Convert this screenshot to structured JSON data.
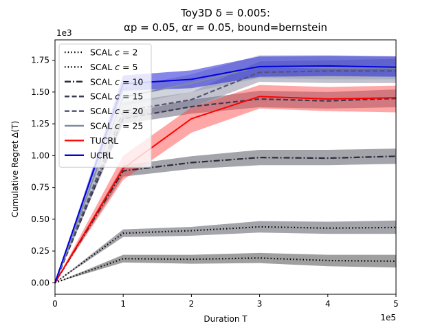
{
  "chart_data": {
    "type": "line",
    "title_line1": "Toy3D δ = 0.005:",
    "title_line2": "αp = 0.05, αr = 0.05, bound=bernstein",
    "xlabel": "Duration T",
    "ylabel": "Cumulative Regret Δ(T)",
    "x_offset_label": "1e5",
    "y_offset_label": "1e3",
    "xlim": [
      0,
      5
    ],
    "ylim": [
      -0.09,
      1.91
    ],
    "x_ticks": [
      0,
      1,
      2,
      3,
      4,
      5
    ],
    "x_tick_labels": [
      "0",
      "1",
      "2",
      "3",
      "4",
      "5"
    ],
    "y_ticks": [
      0,
      0.25,
      0.5,
      0.75,
      1.0,
      1.25,
      1.5,
      1.75
    ],
    "y_tick_labels": [
      "0.00",
      "0.25",
      "0.50",
      "0.75",
      "1.00",
      "1.25",
      "1.50",
      "1.75"
    ],
    "x": [
      0,
      1,
      2,
      3,
      4,
      5
    ],
    "legend_position": "top-left",
    "series": [
      {
        "name": "SCAL c=2",
        "label_prefix": "SCAL ",
        "label_math": "c = 2",
        "color": "#000000",
        "dash": "dotted",
        "line_width": 2.2,
        "values": [
          0,
          0.19,
          0.185,
          0.195,
          0.175,
          0.17
        ],
        "lower": [
          0,
          0.16,
          0.15,
          0.155,
          0.13,
          0.12
        ],
        "upper": [
          0,
          0.22,
          0.22,
          0.235,
          0.22,
          0.22
        ],
        "band_color": "#404040",
        "band_opacity": 0.5
      },
      {
        "name": "SCAL c=5",
        "label_prefix": "SCAL ",
        "label_math": "c = 5",
        "color": "#000000",
        "dash": "dotted",
        "line_width": 2.2,
        "values": [
          0,
          0.39,
          0.41,
          0.44,
          0.43,
          0.435
        ],
        "lower": [
          0,
          0.36,
          0.37,
          0.395,
          0.385,
          0.385
        ],
        "upper": [
          0,
          0.42,
          0.44,
          0.485,
          0.48,
          0.49
        ],
        "band_color": "#4a4a58",
        "band_opacity": 0.5
      },
      {
        "name": "SCAL c=10",
        "label_prefix": "SCAL ",
        "label_math": "c = 10",
        "color": "#2b2b3a",
        "dash": "dashdot",
        "line_width": 2.2,
        "values": [
          0,
          0.88,
          0.945,
          0.985,
          0.98,
          0.995
        ],
        "lower": [
          0,
          0.835,
          0.895,
          0.925,
          0.925,
          0.935
        ],
        "upper": [
          0,
          0.925,
          0.995,
          1.045,
          1.045,
          1.055
        ],
        "band_color": "#4a4a58",
        "band_opacity": 0.5
      },
      {
        "name": "SCAL c=15",
        "label_prefix": "SCAL ",
        "label_math": "c = 15",
        "color": "#3a3a52",
        "dash": "dashed",
        "line_width": 2.2,
        "values": [
          0,
          1.29,
          1.385,
          1.445,
          1.43,
          1.45
        ],
        "lower": [
          0,
          1.25,
          1.33,
          1.38,
          1.37,
          1.38
        ],
        "upper": [
          0,
          1.33,
          1.44,
          1.51,
          1.5,
          1.52
        ],
        "band_color": "#5a5a70",
        "band_opacity": 0.5
      },
      {
        "name": "SCAL c=20",
        "label_prefix": "SCAL ",
        "label_math": "c = 20",
        "color": "#535374",
        "dash": "dashed",
        "line_width": 2.2,
        "values": [
          0,
          1.35,
          1.44,
          1.655,
          1.665,
          1.665
        ],
        "lower": [
          0,
          1.29,
          1.38,
          1.58,
          1.57,
          1.57
        ],
        "upper": [
          0,
          1.42,
          1.5,
          1.74,
          1.75,
          1.76
        ],
        "band_color": "#6a6a85",
        "band_opacity": 0.4
      },
      {
        "name": "SCAL c=25",
        "label_prefix": "SCAL ",
        "label_math": "c = 25",
        "color": "#7f8ba0",
        "dash": "solid",
        "line_width": 2.2,
        "values": [
          0,
          1.46,
          1.57,
          1.7,
          1.69,
          1.69
        ],
        "lower": [
          0,
          1.39,
          1.5,
          1.61,
          1.6,
          1.6
        ],
        "upper": [
          0,
          1.53,
          1.64,
          1.79,
          1.79,
          1.78
        ],
        "band_color": "#8a95aa",
        "band_opacity": 0.4
      },
      {
        "name": "TUCRL",
        "label_prefix": "TUCRL",
        "label_math": "",
        "color": "#ff0000",
        "dash": "solid",
        "line_width": 2.0,
        "values": [
          0,
          0.9,
          1.29,
          1.465,
          1.445,
          1.455
        ],
        "lower": [
          0,
          0.81,
          1.18,
          1.37,
          1.35,
          1.34
        ],
        "upper": [
          0,
          1.0,
          1.38,
          1.555,
          1.54,
          1.55
        ],
        "band_color": "#ff3b3b",
        "band_opacity": 0.45
      },
      {
        "name": "UCRL",
        "label_prefix": "UCRL",
        "label_math": "",
        "color": "#0000e0",
        "dash": "solid",
        "line_width": 2.0,
        "values": [
          0,
          1.565,
          1.6,
          1.7,
          1.705,
          1.695
        ],
        "lower": [
          0,
          1.51,
          1.53,
          1.62,
          1.625,
          1.62
        ],
        "upper": [
          0,
          1.63,
          1.67,
          1.78,
          1.785,
          1.78
        ],
        "band_color": "#2323d8",
        "band_opacity": 0.55
      }
    ]
  }
}
